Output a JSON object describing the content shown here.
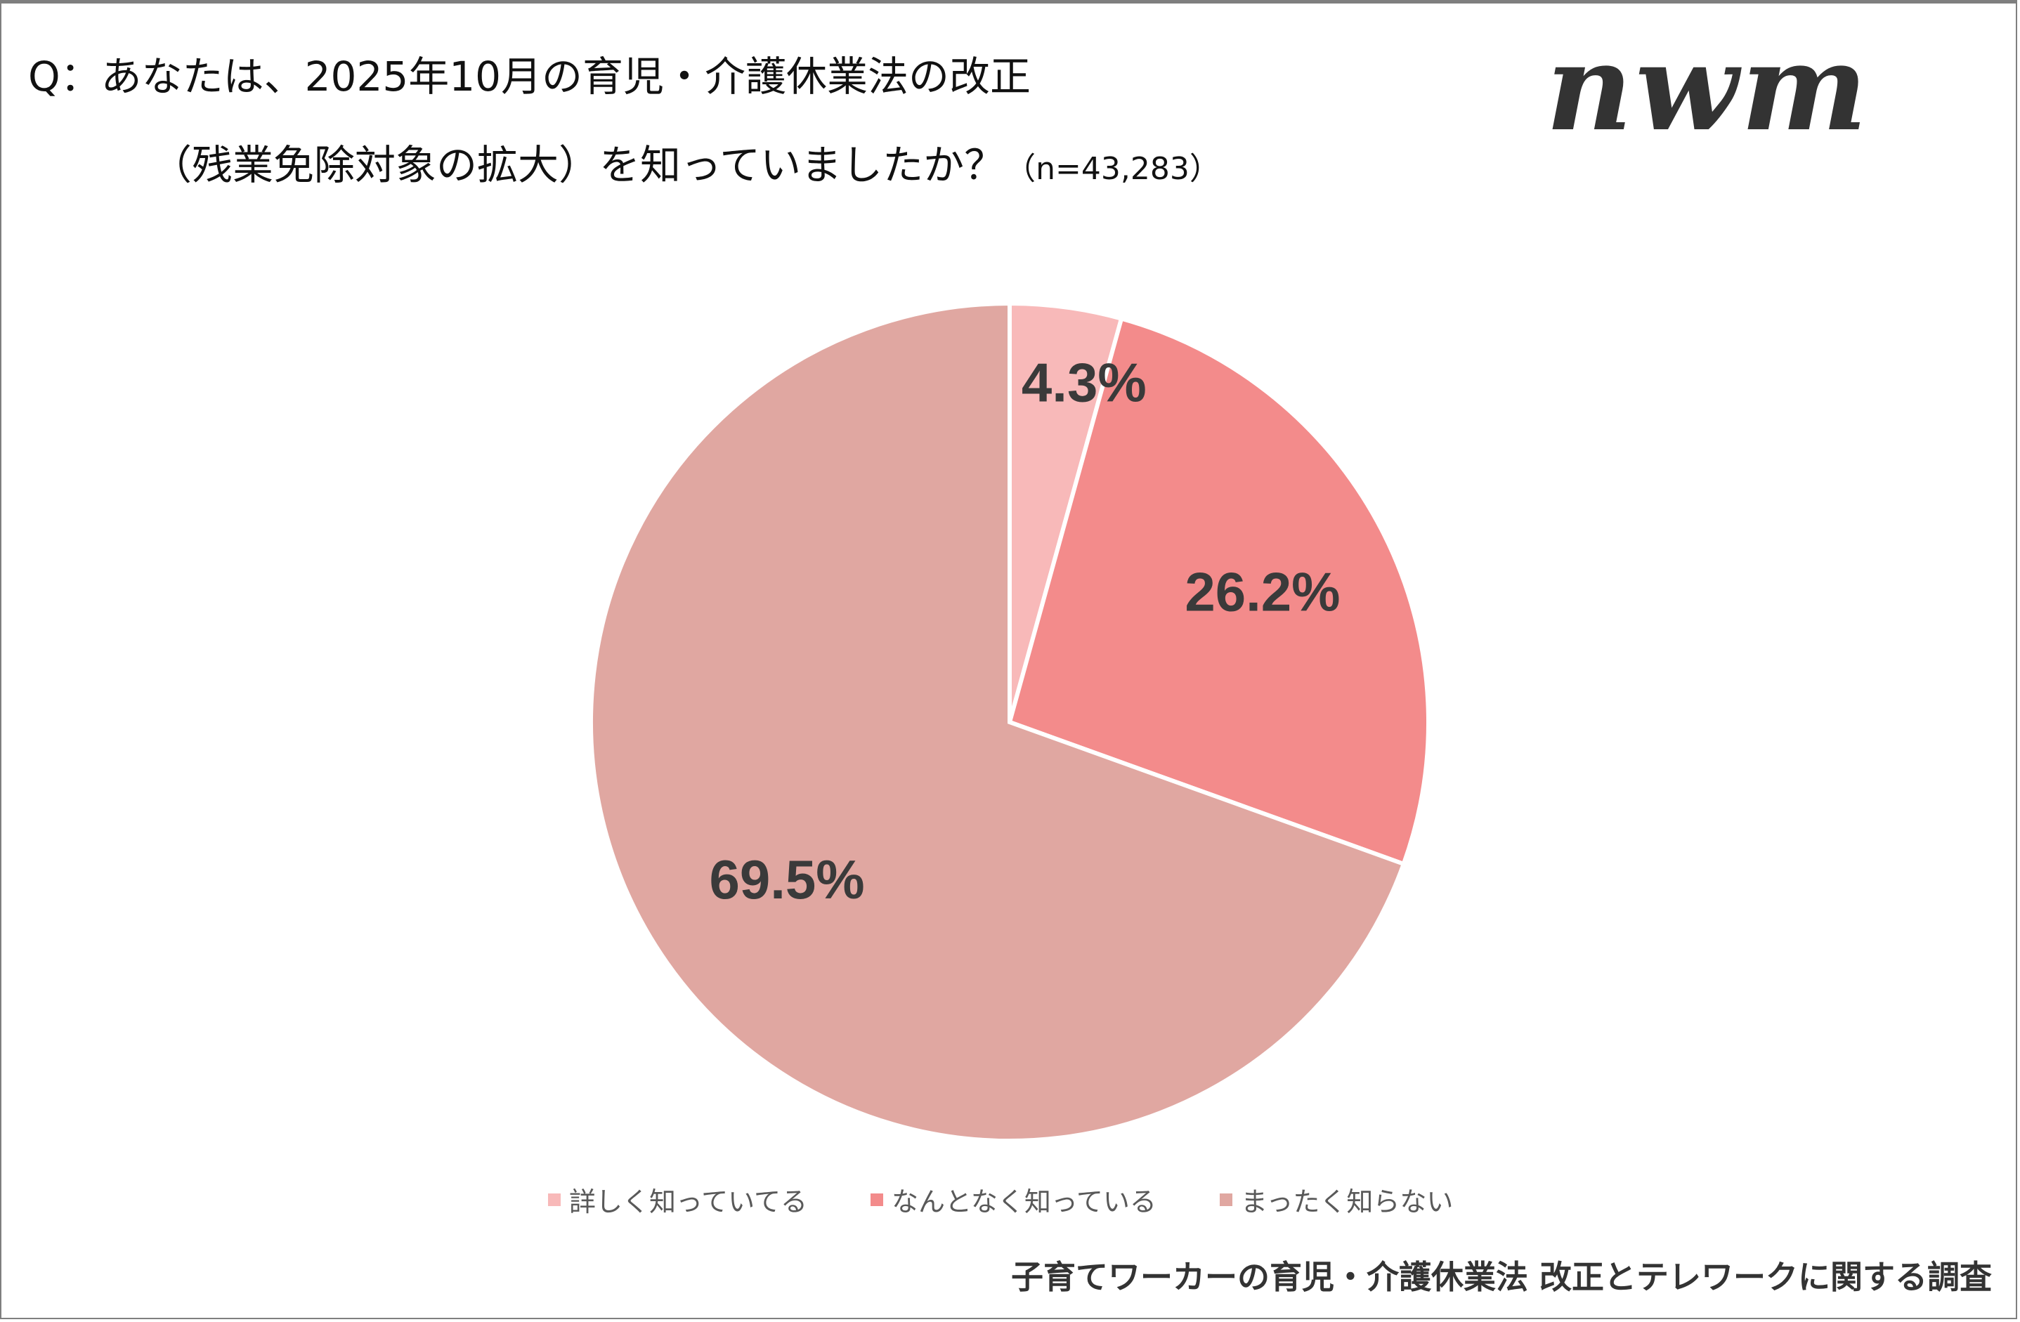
{
  "title_line1": "Q：あなたは、2025年10月の育児・介護休業法の改正",
  "title_line2": "（残業免除対象の拡大）を知っていましたか？",
  "sample_size": "（n=43,283）",
  "logo_text": "nwm",
  "footer": "子育てワーカーの育児・介護休業法 改正とテレワークに関する調査",
  "chart_data": {
    "type": "pie",
    "title": "Q：あなたは、2025年10月の育児・介護休業法の改正（残業免除対象の拡大）を知っていましたか？",
    "categories": [
      "詳しく知っていてる",
      "なんとなく知っている",
      "まったく知らない"
    ],
    "values": [
      4.3,
      26.2,
      69.5
    ],
    "labels": [
      "4.3%",
      "26.2%",
      "69.5%"
    ],
    "colors": [
      "#F8B9B9",
      "#F38B8B",
      "#E0A7A1"
    ],
    "legend": "bottom",
    "start": "top, clockwise"
  }
}
